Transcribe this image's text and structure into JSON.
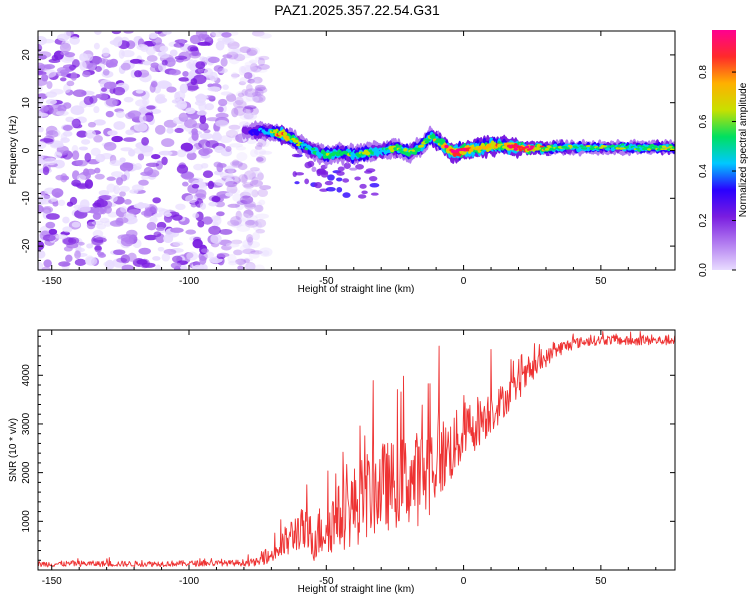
{
  "title": "PAZ1.2025.357.22.54.G31",
  "colors": {
    "snr_line": "#ee3333",
    "axis": "#000000",
    "colormap": [
      "#e8dcff",
      "#b27cf0",
      "#7a1de0",
      "#2a00ff",
      "#00c8ff",
      "#00e060",
      "#c8e000",
      "#ffb000",
      "#ff2a2a",
      "#ff0090"
    ]
  },
  "chart_data": [
    {
      "type": "heatmap",
      "name": "spectrogram",
      "xlabel": "Height of straight line (km)",
      "ylabel": "Frequency (Hz)",
      "xlim": [
        -155,
        77
      ],
      "ylim": [
        -25,
        25
      ],
      "xticks": [
        -150,
        -100,
        -50,
        0,
        50
      ],
      "xtick_labels": [
        "-150",
        "-100",
        "-50",
        "0",
        "50"
      ],
      "yticks": [
        -20,
        -10,
        0,
        10,
        20
      ],
      "ytick_labels": [
        "-20",
        "-10",
        "0",
        "10",
        "20"
      ],
      "colorbar": {
        "label": "Normalized spectral amplitude",
        "range": [
          0,
          0.97
        ],
        "ticks": [
          0.0,
          0.2,
          0.4,
          0.6,
          0.8
        ],
        "tick_labels": [
          "0.0",
          "0.2",
          "0.4",
          "0.6",
          "0.8"
        ]
      },
      "noise_region_x": [
        -155,
        -72
      ],
      "signal_ridge": {
        "x": [
          -80,
          -72,
          -66,
          -60,
          -55,
          -50,
          -45,
          -40,
          -35,
          -30,
          -25,
          -20,
          -15,
          -12,
          -8,
          -4,
          0,
          5,
          10,
          15,
          20,
          30,
          40,
          50,
          60,
          77
        ],
        "freq": [
          4,
          4,
          3.5,
          1.5,
          0,
          -1,
          -0.5,
          -1,
          -0.5,
          0,
          0.5,
          -0.5,
          1,
          3,
          1.5,
          -0.5,
          0,
          0.5,
          1,
          1,
          0.5,
          0.5,
          0.6,
          0.6,
          0.6,
          0.6
        ],
        "amplitude": [
          0.15,
          0.3,
          0.75,
          0.45,
          0.35,
          0.5,
          0.4,
          0.45,
          0.5,
          0.4,
          0.5,
          0.45,
          0.55,
          0.5,
          0.6,
          0.85,
          0.9,
          0.6,
          0.7,
          0.6,
          0.95,
          0.6,
          0.45,
          0.45,
          0.45,
          0.55
        ]
      }
    },
    {
      "type": "line",
      "name": "snr",
      "xlabel": "Height of straight line (km)",
      "ylabel": "SNR (10 * v/v)",
      "xlim": [
        -155,
        77
      ],
      "ylim": [
        0,
        4930
      ],
      "xticks": [
        -150,
        -100,
        -50,
        0,
        50
      ],
      "xtick_labels": [
        "-150",
        "-100",
        "-50",
        "0",
        "50"
      ],
      "yticks": [
        1000,
        2000,
        3000,
        4000
      ],
      "ytick_labels": [
        "1000",
        "2000",
        "3000",
        "4000"
      ],
      "series": [
        {
          "name": "SNR",
          "x": [
            -155,
            -140,
            -120,
            -100,
            -85,
            -75,
            -70,
            -65,
            -60,
            -55,
            -50,
            -45,
            -40,
            -35,
            -30,
            -25,
            -20,
            -15,
            -10,
            -5,
            0,
            5,
            10,
            15,
            20,
            25,
            30,
            35,
            40,
            45,
            50,
            55,
            60,
            65,
            70,
            77
          ],
          "y": [
            120,
            130,
            125,
            135,
            140,
            160,
            300,
            550,
            850,
            650,
            900,
            1100,
            1300,
            1550,
            1700,
            1750,
            1850,
            1900,
            2250,
            2450,
            2800,
            3050,
            3250,
            3500,
            3800,
            4100,
            4350,
            4550,
            4650,
            4700,
            4720,
            4730,
            4700,
            4720,
            4710,
            4720
          ],
          "noise_amplitude": [
            60,
            60,
            60,
            60,
            60,
            80,
            150,
            350,
            450,
            500,
            600,
            700,
            850,
            900,
            950,
            900,
            950,
            1000,
            900,
            700,
            650,
            550,
            450,
            350,
            300,
            250,
            180,
            150,
            120,
            100,
            100,
            100,
            100,
            100,
            100,
            100
          ]
        }
      ],
      "annotations": [
        {
          "x": -33,
          "y": 3890
        },
        {
          "x": -22,
          "y": 3980
        },
        {
          "x": -9,
          "y": 4600
        },
        {
          "x": 10,
          "y": 4530
        }
      ]
    }
  ]
}
